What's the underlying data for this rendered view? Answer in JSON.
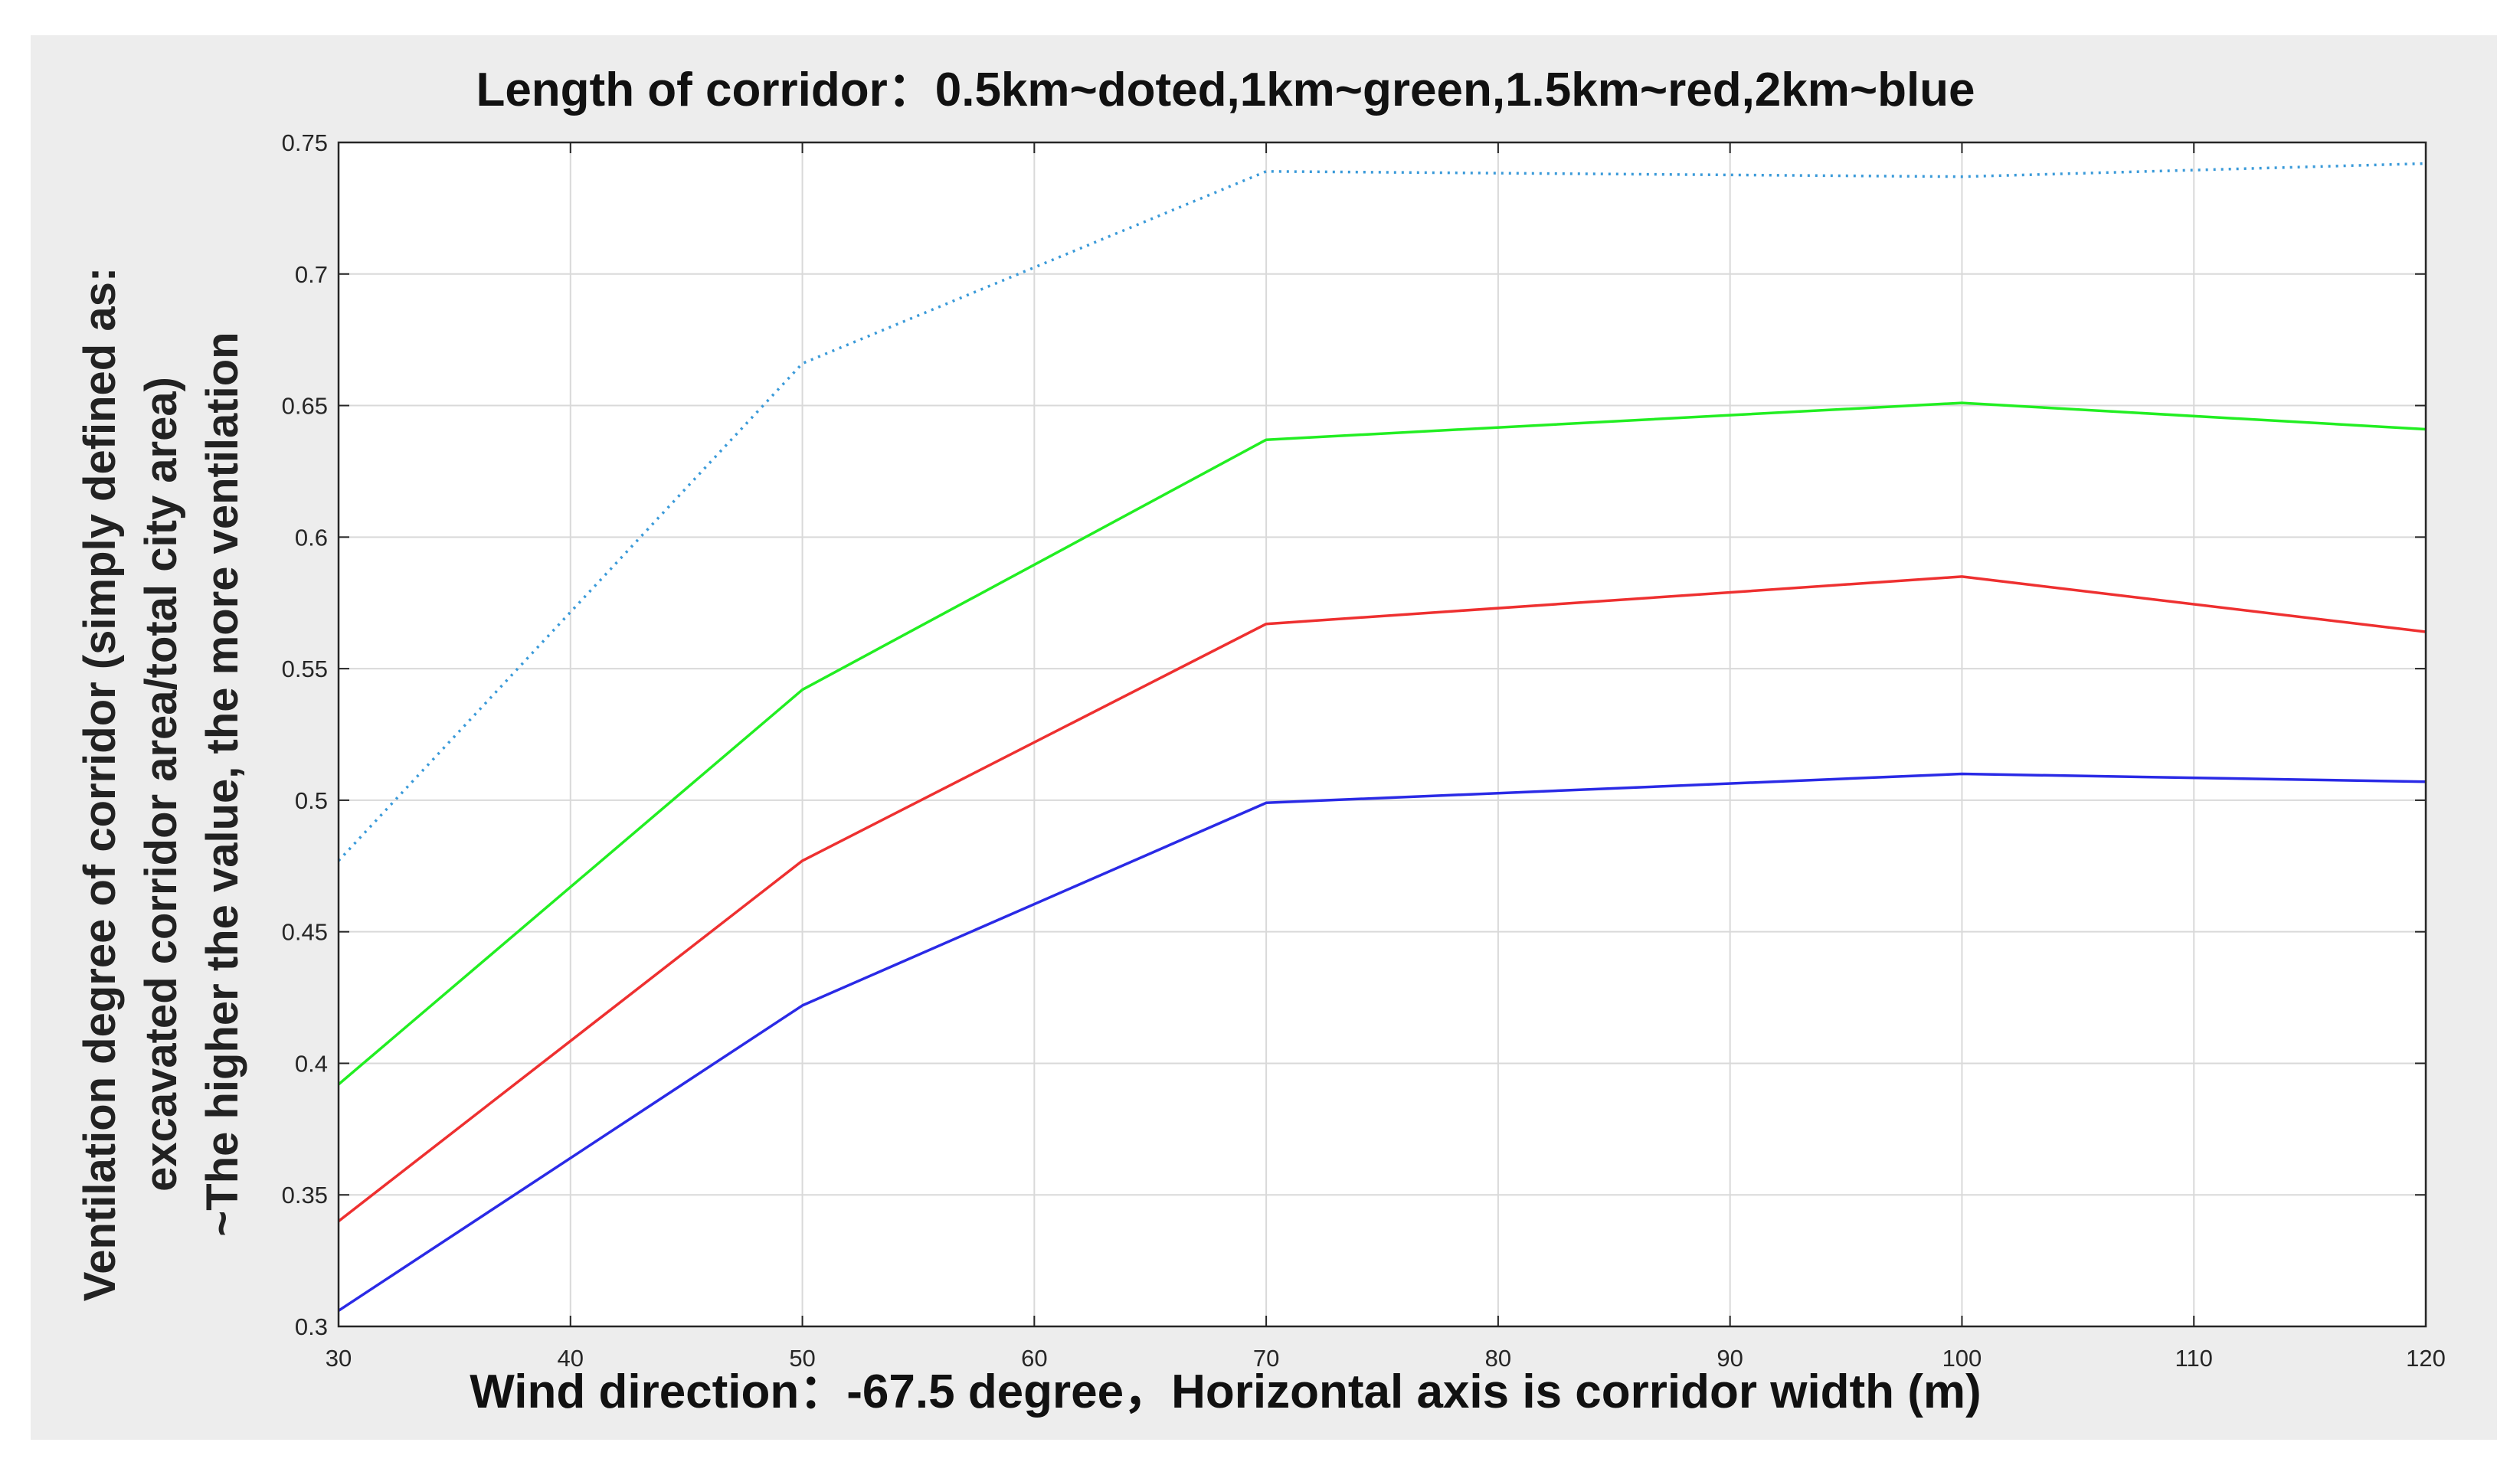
{
  "chart_data": {
    "type": "line",
    "title": "Length of corridor：0.5km~doted,1km~green,1.5km~red,2km~blue",
    "xlabel": "Wind direction：-67.5 degree，Horizontal axis is corridor width (m)",
    "ylabel_lines": [
      "Ventilation degree of corridor (simply defined as:",
      "excavated corridor area/total city area)",
      "~The higher the value, the more ventilation"
    ],
    "x": [
      30,
      50,
      70,
      100,
      120
    ],
    "xlim": [
      30,
      120
    ],
    "ylim": [
      0.3,
      0.75
    ],
    "xticks": [
      "30",
      "40",
      "50",
      "60",
      "70",
      "80",
      "90",
      "100",
      "110",
      "120"
    ],
    "yticks": [
      "0.3",
      "0.35",
      "0.4",
      "0.45",
      "0.5",
      "0.55",
      "0.6",
      "0.65",
      "0.7",
      "0.75"
    ],
    "grid": true,
    "series": [
      {
        "values": [
          0.477,
          0.666,
          0.739,
          0.737,
          0.742
        ],
        "color": "#3a9ad9",
        "style": "dotted"
      },
      {
        "values": [
          0.392,
          0.542,
          0.637,
          0.651,
          0.641
        ],
        "color": "#22ee22",
        "style": "solid"
      },
      {
        "values": [
          0.34,
          0.477,
          0.567,
          0.585,
          0.564
        ],
        "color": "#ee3030",
        "style": "solid"
      },
      {
        "values": [
          0.306,
          0.422,
          0.499,
          0.51,
          0.507
        ],
        "color": "#2a2ae6",
        "style": "solid"
      }
    ]
  }
}
